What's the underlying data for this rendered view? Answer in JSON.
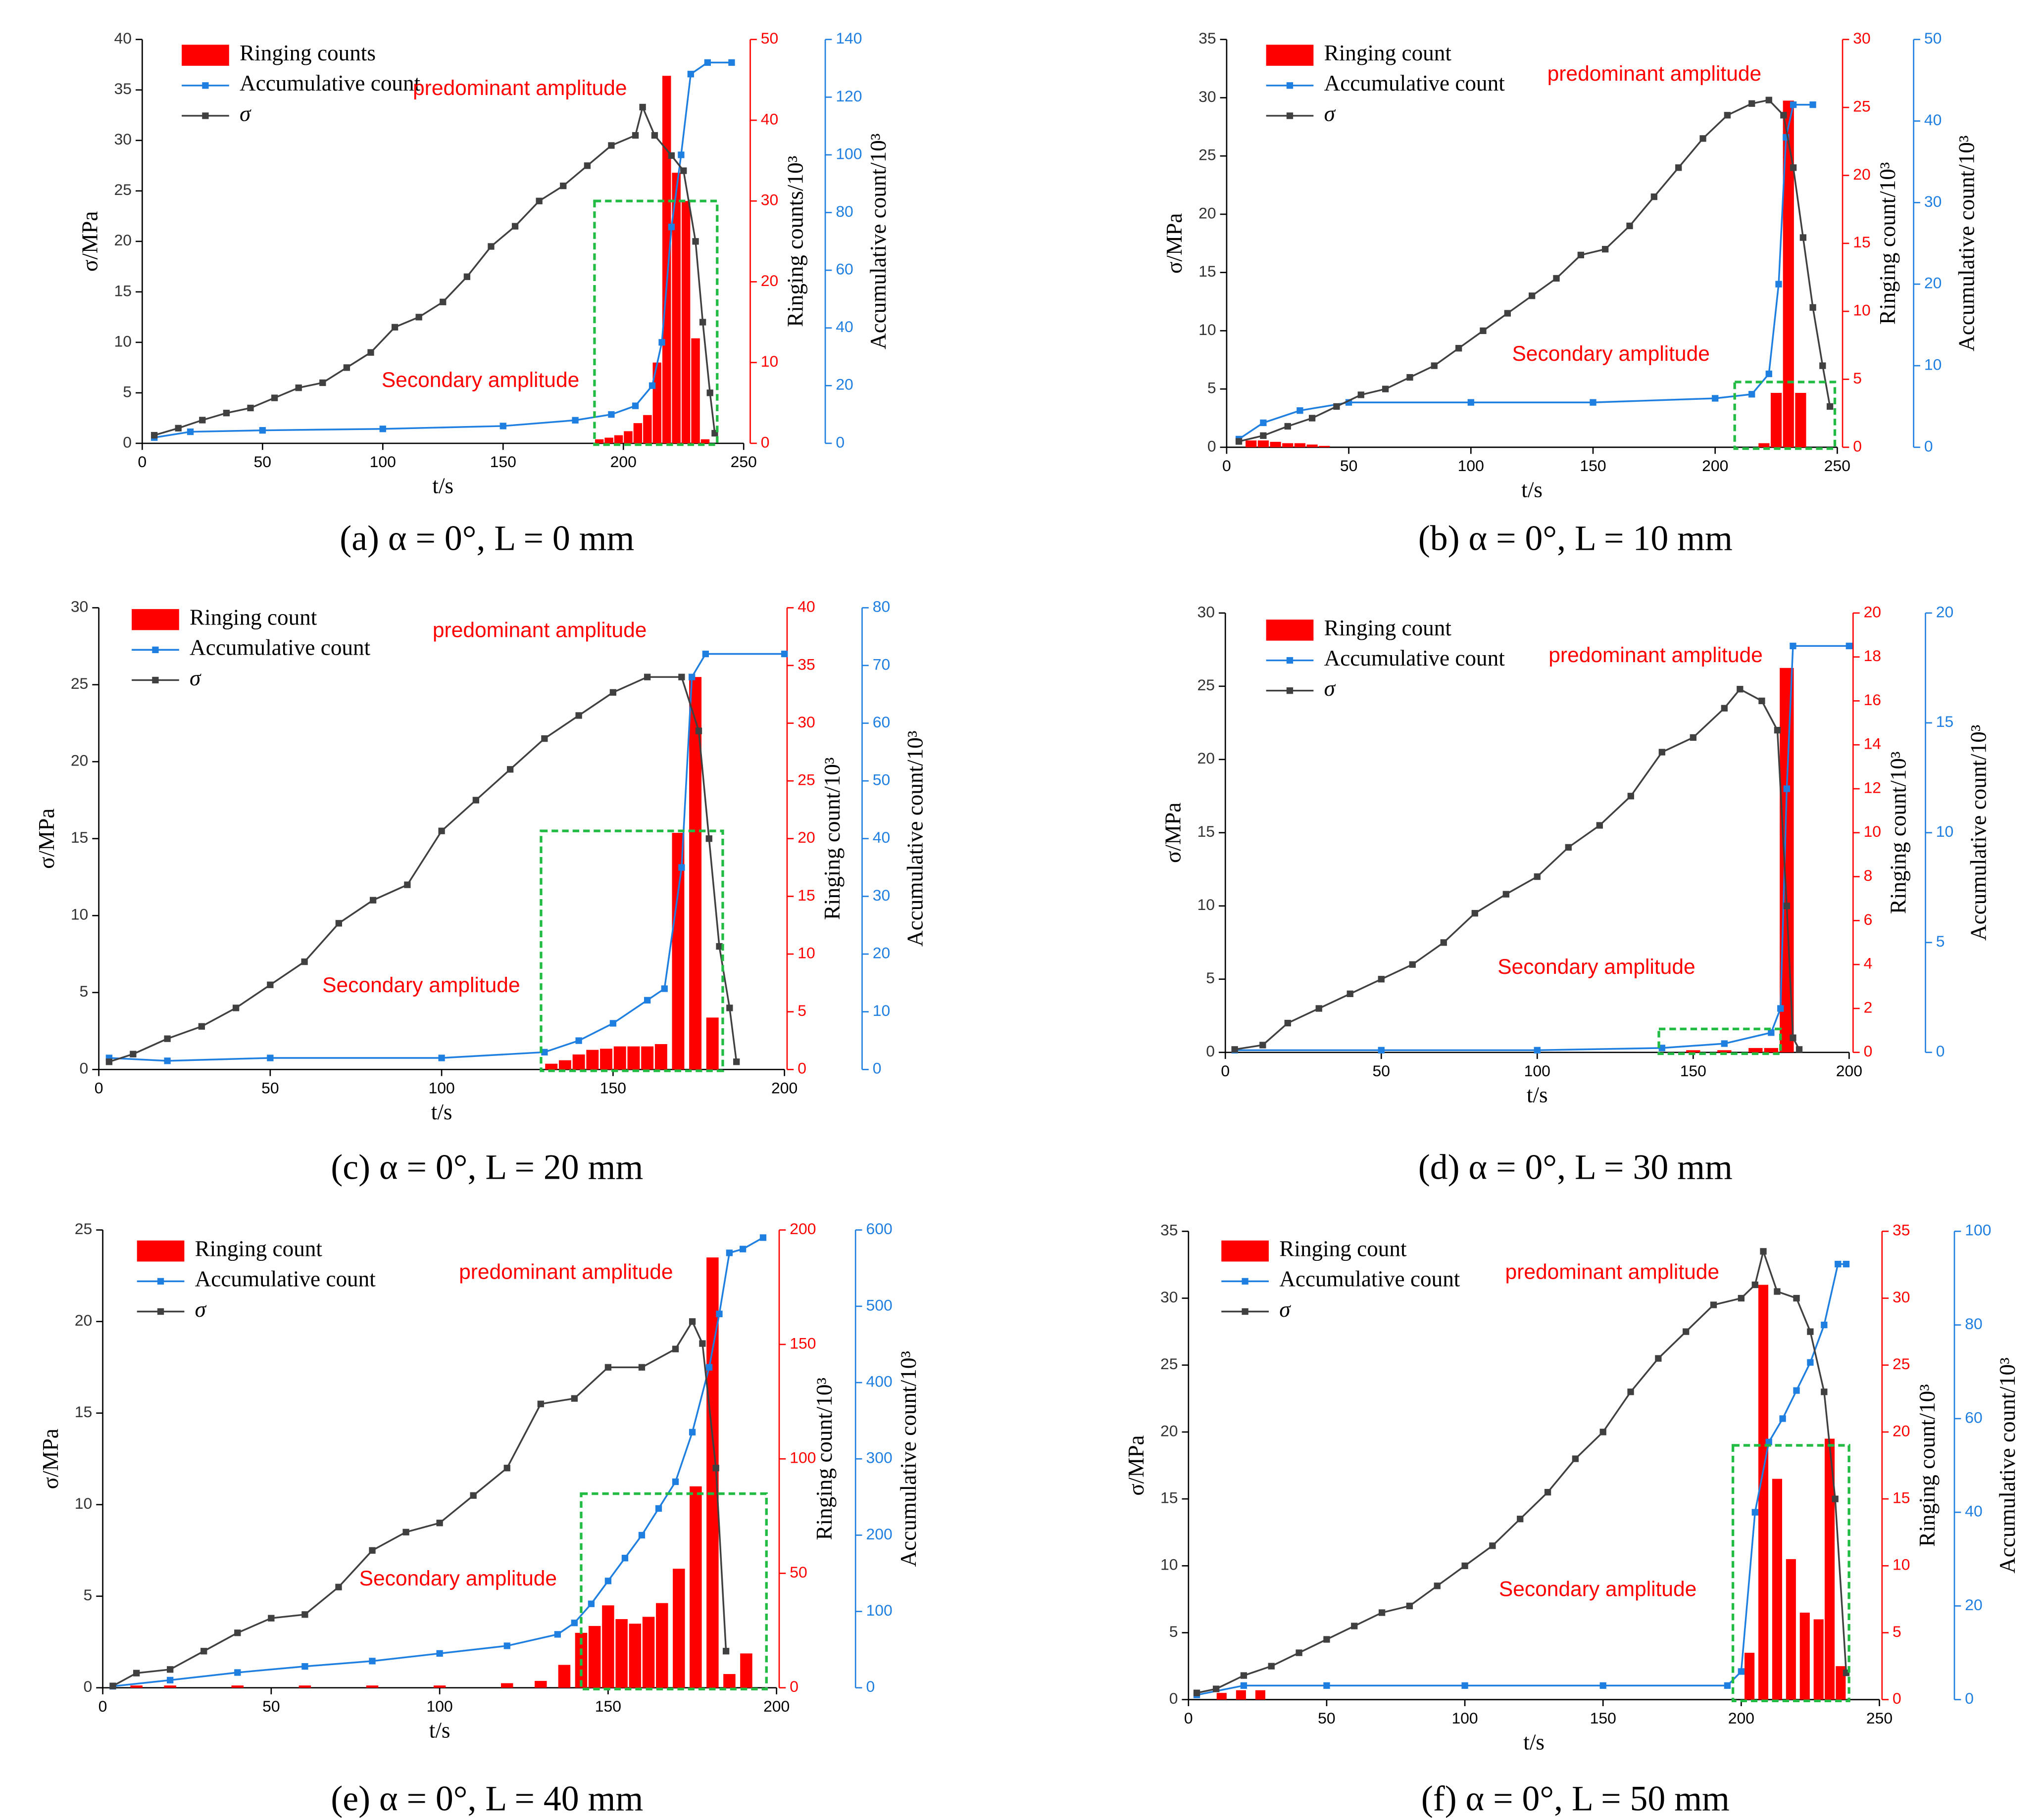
{
  "chart_data": [
    {
      "type": "combo",
      "caption": "(a) α = 0°, L = 0 mm",
      "x_label": "t/s",
      "y_label": "σ/MPa",
      "y2_label": "Ringing counts/10³",
      "y3_label": "Accumulative count/10³",
      "annotations": [
        "predominant amplitude",
        "Secondary amplitude"
      ],
      "xlim": [
        0,
        250
      ],
      "xticks": [
        0,
        50,
        100,
        150,
        200,
        250
      ],
      "ylim": [
        0,
        40
      ],
      "yticks": [
        0,
        5,
        10,
        15,
        20,
        25,
        30,
        35,
        40
      ],
      "y2lim": [
        0,
        50
      ],
      "y2ticks": [
        0,
        10,
        20,
        30,
        40,
        50
      ],
      "y3lim": [
        0,
        140
      ],
      "y3ticks": [
        0,
        20,
        40,
        60,
        80,
        100,
        120,
        140
      ],
      "series": [
        {
          "name": "Ringing counts",
          "type": "bar",
          "axis": "y2",
          "color": "#ff0000",
          "x": [
            190,
            194,
            198,
            202,
            206,
            210,
            214,
            218,
            222,
            226,
            230,
            234
          ],
          "values": [
            0.5,
            0.7,
            1,
            1.5,
            2.5,
            3.5,
            10,
            45.5,
            33.5,
            30,
            13,
            0.5
          ]
        },
        {
          "name": "Accumulative count",
          "type": "line",
          "axis": "y3",
          "color": "#1f7fe0",
          "x": [
            5,
            20,
            50,
            100,
            150,
            180,
            195,
            205,
            212,
            216,
            220,
            224,
            228,
            235,
            245
          ],
          "values": [
            2,
            4,
            4.5,
            5,
            6,
            8,
            10,
            13,
            20,
            35,
            75,
            100,
            128,
            132,
            132
          ]
        },
        {
          "name": "σ",
          "type": "line",
          "axis": "y",
          "color": "#404040",
          "x": [
            5,
            15,
            25,
            35,
            45,
            55,
            65,
            75,
            85,
            95,
            105,
            115,
            125,
            135,
            145,
            155,
            165,
            175,
            185,
            195,
            205,
            208,
            213,
            220,
            225,
            230,
            233,
            236,
            238
          ],
          "values": [
            0.8,
            1.5,
            2.3,
            3,
            3.5,
            4.5,
            5.5,
            6,
            7.5,
            9,
            11.5,
            12.5,
            14,
            16.5,
            19.5,
            21.5,
            24,
            25.5,
            27.5,
            29.5,
            30.5,
            33.3,
            30.5,
            28.5,
            27,
            20,
            12,
            5,
            1
          ]
        }
      ]
    },
    {
      "type": "combo",
      "caption": "(b) α = 0°, L = 10 mm",
      "x_label": "t/s",
      "y_label": "σ/MPa",
      "y2_label": "Ringing count/10³",
      "y3_label": "Accumulative count/10³",
      "annotations": [
        "predominant amplitude",
        "Secondary amplitude"
      ],
      "xlim": [
        0,
        250
      ],
      "xticks": [
        0,
        50,
        100,
        150,
        200,
        250
      ],
      "ylim": [
        0,
        35
      ],
      "yticks": [
        0,
        5,
        10,
        15,
        20,
        25,
        30,
        35
      ],
      "y2lim": [
        0,
        30
      ],
      "y2ticks": [
        0,
        5,
        10,
        15,
        20,
        25,
        30
      ],
      "y3lim": [
        0,
        50
      ],
      "y3ticks": [
        0,
        10,
        20,
        30,
        40,
        50
      ],
      "series": [
        {
          "name": "Ringing count",
          "type": "bar",
          "axis": "y2",
          "color": "#ff0000",
          "x": [
            10,
            15,
            20,
            25,
            30,
            35,
            40,
            220,
            225,
            230,
            235
          ],
          "values": [
            0.5,
            0.5,
            0.4,
            0.3,
            0.3,
            0.2,
            0.1,
            0.3,
            4,
            25.5,
            4
          ]
        },
        {
          "name": "Accumulative count",
          "type": "line",
          "axis": "y3",
          "color": "#1f7fe0",
          "x": [
            5,
            15,
            30,
            50,
            100,
            150,
            200,
            215,
            222,
            226,
            229,
            232,
            240
          ],
          "values": [
            1,
            3,
            4.5,
            5.5,
            5.5,
            5.5,
            6,
            6.5,
            9,
            20,
            38,
            42,
            42
          ]
        },
        {
          "name": "σ",
          "type": "line",
          "axis": "y",
          "color": "#404040",
          "x": [
            5,
            15,
            25,
            35,
            45,
            55,
            65,
            75,
            85,
            95,
            105,
            115,
            125,
            135,
            145,
            155,
            165,
            175,
            185,
            195,
            205,
            215,
            222,
            228,
            232,
            236,
            240,
            244,
            247
          ],
          "values": [
            0.5,
            1,
            1.8,
            2.5,
            3.5,
            4.5,
            5,
            6,
            7,
            8.5,
            10,
            11.5,
            13,
            14.5,
            16.5,
            17,
            19,
            21.5,
            24,
            26.5,
            28.5,
            29.5,
            29.8,
            28.5,
            24,
            18,
            12,
            7,
            3.5
          ]
        }
      ]
    },
    {
      "type": "combo",
      "caption": "(c) α = 0°, L = 20 mm",
      "x_label": "t/s",
      "y_label": "σ/MPa",
      "y2_label": "Ringing count/10³",
      "y3_label": "Accumulative count/10³",
      "annotations": [
        "predominant amplitude",
        "Secondary amplitude"
      ],
      "xlim": [
        0,
        200
      ],
      "xticks": [
        0,
        50,
        100,
        150,
        200
      ],
      "ylim": [
        0,
        30
      ],
      "yticks": [
        0,
        5,
        10,
        15,
        20,
        25,
        30
      ],
      "y2lim": [
        0,
        40
      ],
      "y2ticks": [
        0,
        5,
        10,
        15,
        20,
        25,
        30,
        35,
        40
      ],
      "y3lim": [
        0,
        80
      ],
      "y3ticks": [
        0,
        10,
        20,
        30,
        40,
        50,
        60,
        70,
        80
      ],
      "series": [
        {
          "name": "Ringing count",
          "type": "bar",
          "axis": "y2",
          "color": "#ff0000",
          "x": [
            132,
            136,
            140,
            144,
            148,
            152,
            156,
            160,
            164,
            169,
            174,
            179
          ],
          "values": [
            0.5,
            0.8,
            1.3,
            1.7,
            1.8,
            2,
            2,
            2,
            2.2,
            20.5,
            34,
            4.5
          ]
        },
        {
          "name": "Accumulative count",
          "type": "line",
          "axis": "y3",
          "color": "#1f7fe0",
          "x": [
            3,
            20,
            50,
            100,
            130,
            140,
            150,
            160,
            165,
            170,
            173,
            177,
            200
          ],
          "values": [
            2,
            1.5,
            2,
            2,
            3,
            5,
            8,
            12,
            14,
            35,
            68,
            72,
            72
          ]
        },
        {
          "name": "σ",
          "type": "line",
          "axis": "y",
          "color": "#404040",
          "x": [
            3,
            10,
            20,
            30,
            40,
            50,
            60,
            70,
            80,
            90,
            100,
            110,
            120,
            130,
            140,
            150,
            160,
            170,
            175,
            178,
            181,
            184,
            186
          ],
          "values": [
            0.5,
            1,
            2,
            2.8,
            4,
            5.5,
            7,
            9.5,
            11,
            12,
            15.5,
            17.5,
            19.5,
            21.5,
            23,
            24.5,
            25.5,
            25.5,
            22,
            15,
            8,
            4,
            0.5
          ]
        }
      ]
    },
    {
      "type": "combo",
      "caption": "(d) α = 0°, L = 30 mm",
      "x_label": "t/s",
      "y_label": "σ/MPa",
      "y2_label": "Ringing count/10³",
      "y3_label": "Accumulative count/10³",
      "annotations": [
        "predominant amplitude",
        "Secondary amplitude"
      ],
      "xlim": [
        0,
        200
      ],
      "xticks": [
        0,
        50,
        100,
        150,
        200
      ],
      "ylim": [
        0,
        30
      ],
      "yticks": [
        0,
        5,
        10,
        15,
        20,
        25,
        30
      ],
      "y2lim": [
        0,
        20
      ],
      "y2ticks": [
        0,
        2,
        4,
        6,
        8,
        10,
        12,
        14,
        16,
        18,
        20
      ],
      "y3lim": [
        0,
        20
      ],
      "y3ticks": [
        0,
        5,
        10,
        15,
        20
      ],
      "series": [
        {
          "name": "Ringing count",
          "type": "bar",
          "axis": "y2",
          "color": "#ff0000",
          "x": [
            150,
            160,
            170,
            175,
            180
          ],
          "values": [
            0.1,
            0.1,
            0.2,
            0.2,
            17.5
          ]
        },
        {
          "name": "Accumulative count",
          "type": "line",
          "axis": "y3",
          "color": "#1f7fe0",
          "x": [
            3,
            50,
            100,
            140,
            160,
            175,
            178,
            180,
            182,
            200
          ],
          "values": [
            0.1,
            0.1,
            0.1,
            0.2,
            0.4,
            0.9,
            2,
            12,
            18.5,
            18.5
          ]
        },
        {
          "name": "σ",
          "type": "line",
          "axis": "y",
          "color": "#404040",
          "x": [
            3,
            12,
            20,
            30,
            40,
            50,
            60,
            70,
            80,
            90,
            100,
            110,
            120,
            130,
            140,
            150,
            160,
            165,
            172,
            177,
            180,
            182,
            184
          ],
          "values": [
            0.2,
            0.5,
            2,
            3,
            4,
            5,
            6,
            7.5,
            9.5,
            10.8,
            12,
            14,
            15.5,
            17.5,
            20.5,
            21.5,
            23.5,
            24.8,
            24,
            22,
            10,
            1,
            0.2
          ]
        }
      ]
    },
    {
      "type": "combo",
      "caption": "(e) α = 0°, L = 40 mm",
      "x_label": "t/s",
      "y_label": "σ/MPa",
      "y2_label": "Ringing count/10³",
      "y3_label": "Accumulative count/10³",
      "annotations": [
        "predominant amplitude",
        "Secondary amplitude"
      ],
      "xlim": [
        0,
        200
      ],
      "xticks": [
        0,
        50,
        100,
        150,
        200
      ],
      "ylim": [
        0,
        25
      ],
      "yticks": [
        0,
        5,
        10,
        15,
        20,
        25
      ],
      "y2lim": [
        0,
        200
      ],
      "y2ticks": [
        0,
        50,
        100,
        150,
        200
      ],
      "y3lim": [
        0,
        600
      ],
      "y3ticks": [
        0,
        100,
        200,
        300,
        400,
        500,
        600
      ],
      "series": [
        {
          "name": "Ringing count",
          "type": "bar",
          "axis": "y2",
          "color": "#ff0000",
          "x": [
            10,
            20,
            40,
            60,
            80,
            100,
            120,
            130,
            137,
            142,
            146,
            150,
            154,
            158,
            162,
            166,
            171,
            176,
            181,
            186,
            191
          ],
          "values": [
            1,
            1,
            1,
            1,
            1,
            1,
            2,
            3,
            10,
            24,
            27,
            36,
            30,
            28,
            31,
            37,
            52,
            88,
            188,
            6,
            15
          ]
        },
        {
          "name": "Accumulative count",
          "type": "line",
          "axis": "y3",
          "color": "#1f7fe0",
          "x": [
            3,
            20,
            40,
            60,
            80,
            100,
            120,
            135,
            140,
            145,
            150,
            155,
            160,
            165,
            170,
            175,
            180,
            183,
            186,
            190,
            196
          ],
          "values": [
            2,
            10,
            20,
            28,
            35,
            45,
            55,
            70,
            85,
            110,
            140,
            170,
            200,
            235,
            270,
            335,
            420,
            490,
            570,
            575,
            590
          ]
        },
        {
          "name": "σ",
          "type": "line",
          "axis": "y",
          "color": "#404040",
          "x": [
            3,
            10,
            20,
            30,
            40,
            50,
            60,
            70,
            80,
            90,
            100,
            110,
            120,
            130,
            140,
            150,
            160,
            170,
            175,
            178,
            182,
            185
          ],
          "values": [
            0.1,
            0.8,
            1,
            2,
            3,
            3.8,
            4,
            5.5,
            7.5,
            8.5,
            9,
            10.5,
            12,
            15.5,
            15.8,
            17.5,
            17.5,
            18.5,
            20,
            18.8,
            12,
            2
          ]
        }
      ]
    },
    {
      "type": "combo",
      "caption": "(f) α = 0°, L = 50 mm",
      "x_label": "t/s",
      "y_label": "σ/MPa",
      "y2_label": "Ringing count/10³",
      "y3_label": "Accumulative count/10³",
      "annotations": [
        "predominant amplitude",
        "Secondary amplitude"
      ],
      "xlim": [
        0,
        250
      ],
      "xticks": [
        0,
        50,
        100,
        150,
        200,
        250
      ],
      "ylim": [
        0,
        35
      ],
      "yticks": [
        0,
        5,
        10,
        15,
        20,
        25,
        30,
        35
      ],
      "y2lim": [
        0,
        35
      ],
      "y2ticks": [
        0,
        5,
        10,
        15,
        20,
        25,
        30,
        35
      ],
      "y3lim": [
        0,
        100
      ],
      "y3ticks": [
        0,
        20,
        40,
        60,
        80,
        100
      ],
      "series": [
        {
          "name": "Ringing count",
          "type": "bar",
          "axis": "y2",
          "color": "#ff0000",
          "x": [
            12,
            19,
            26,
            203,
            208,
            213,
            218,
            223,
            228,
            232,
            236
          ],
          "values": [
            0.5,
            0.7,
            0.7,
            3.5,
            31,
            16.5,
            10.5,
            6.5,
            6,
            19.5,
            2.5
          ]
        },
        {
          "name": "Accumulative count",
          "type": "line",
          "axis": "y3",
          "color": "#1f7fe0",
          "x": [
            3,
            20,
            50,
            100,
            150,
            195,
            200,
            205,
            210,
            215,
            220,
            225,
            230,
            235,
            238
          ],
          "values": [
            1,
            3,
            3,
            3,
            3,
            3,
            6,
            40,
            55,
            60,
            66,
            72,
            80,
            93,
            93
          ]
        },
        {
          "name": "σ",
          "type": "line",
          "axis": "y",
          "color": "#404040",
          "x": [
            3,
            10,
            20,
            30,
            40,
            50,
            60,
            70,
            80,
            90,
            100,
            110,
            120,
            130,
            140,
            150,
            160,
            170,
            180,
            190,
            200,
            205,
            208,
            213,
            220,
            225,
            230,
            234,
            238
          ],
          "values": [
            0.5,
            0.8,
            1.8,
            2.5,
            3.5,
            4.5,
            5.5,
            6.5,
            7,
            8.5,
            10,
            11.5,
            13.5,
            15.5,
            18,
            20,
            23,
            25.5,
            27.5,
            29.5,
            30,
            31,
            33.5,
            30.5,
            30,
            27.5,
            23,
            15,
            2
          ]
        }
      ]
    }
  ]
}
